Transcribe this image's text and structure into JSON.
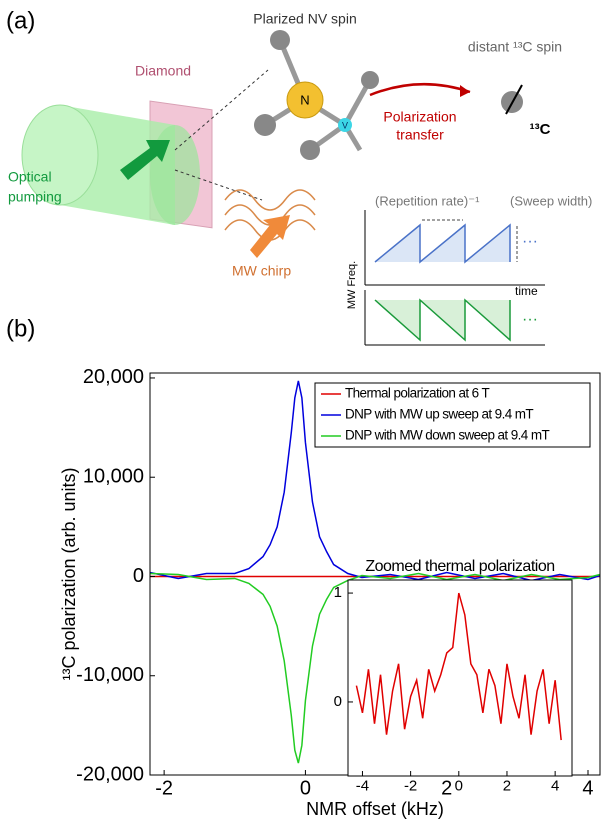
{
  "figure": {
    "panel_a_label": "(a)",
    "panel_b_label": "(b)"
  },
  "diagram": {
    "nv_label": "Plarized NV spin",
    "diamond_label": "Diamond",
    "optical_pumping": [
      "Optical",
      "pumping"
    ],
    "nitrogen": "N",
    "vacancy": "V",
    "transfer_label": [
      "Polarization",
      "transfer"
    ],
    "distant_label": "distant ¹³C spin",
    "carbon_label": "¹³C",
    "mw_chirp": "MW chirp",
    "repetition_rate": "(Repetition rate)⁻¹",
    "sweep_width": "(Sweep width)",
    "y_label": "MW Freq.",
    "x_label": "time",
    "ellipsis_up": "···",
    "ellipsis_down": "···"
  },
  "chart_data": [
    {
      "type": "line",
      "x_label": "NMR offset (kHz)",
      "y_label": "¹³C polarization (arb. units)",
      "x": [
        -2.2,
        -1.8,
        -1.4,
        -1.0,
        -0.8,
        -0.6,
        -0.5,
        -0.4,
        -0.3,
        -0.2,
        -0.15,
        -0.1,
        -0.05,
        0,
        0.1,
        0.2,
        0.3,
        0.4,
        0.6,
        0.8,
        1.2,
        1.6,
        2.0,
        2.4,
        2.8,
        3.2,
        3.6,
        4.0,
        4.17
      ],
      "series": [
        {
          "name": "Thermal polarization at 6 T",
          "color": "#e00000",
          "values": [
            0,
            0,
            0,
            0,
            0,
            0,
            0,
            0,
            0,
            0,
            0,
            0,
            0,
            0,
            0,
            0,
            0,
            0,
            0,
            0,
            0,
            0,
            0,
            0,
            0,
            0,
            0,
            0,
            0
          ]
        },
        {
          "name": "DNP with MW up sweep at 9.4 mT",
          "color": "#0000dd",
          "values": [
            400,
            -200,
            300,
            300,
            800,
            2000,
            3200,
            5000,
            8500,
            14500,
            18000,
            19700,
            18000,
            13500,
            7500,
            4000,
            2500,
            1200,
            300,
            -100,
            200,
            -300,
            400,
            -200,
            300,
            -400,
            200,
            -300,
            100
          ]
        },
        {
          "name": "DNP with MW down sweep at 9.4 mT",
          "color": "#22cc22",
          "values": [
            300,
            200,
            -300,
            -200,
            -700,
            -1800,
            -3000,
            -5000,
            -8500,
            -14000,
            -17500,
            -18800,
            -17000,
            -12500,
            -7000,
            -3800,
            -2300,
            -1100,
            -400,
            100,
            -200,
            300,
            -300,
            200,
            -400,
            200,
            -300,
            -100,
            200
          ]
        }
      ],
      "xlim": [
        -2.2,
        4.17
      ],
      "ylim": [
        -20000,
        20500
      ],
      "xticks": [
        -2,
        0,
        2,
        4
      ],
      "yticks": [
        {
          "value": -20000,
          "label": "-20,000"
        },
        {
          "value": -10000,
          "label": "-10,000"
        },
        0,
        {
          "value": 10000,
          "label": "10,000"
        },
        {
          "value": 20000,
          "label": "20,000"
        }
      ],
      "legend": "upper right"
    },
    {
      "type": "line",
      "title": "Zoomed thermal polarization",
      "x": [
        -4.25,
        -4,
        -3.75,
        -3.5,
        -3.25,
        -3,
        -2.75,
        -2.5,
        -2.25,
        -2,
        -1.75,
        -1.5,
        -1.25,
        -1,
        -0.75,
        -0.5,
        -0.25,
        0,
        0.25,
        0.5,
        0.75,
        1,
        1.25,
        1.5,
        1.75,
        2,
        2.25,
        2.5,
        2.75,
        3,
        3.25,
        3.5,
        3.75,
        4,
        4.25
      ],
      "series": [
        {
          "color": "#e00000",
          "values": [
            0.15,
            -0.1,
            0.3,
            -0.2,
            0.25,
            -0.3,
            0.1,
            0.35,
            -0.25,
            0.05,
            0.2,
            -0.15,
            0.3,
            0.1,
            0.25,
            0.45,
            0.5,
            1.0,
            0.8,
            0.35,
            0.25,
            -0.1,
            0.3,
            0.15,
            -0.2,
            0.35,
            0.05,
            -0.15,
            0.25,
            -0.3,
            0.1,
            0.3,
            -0.2,
            0.2,
            -0.35
          ]
        }
      ],
      "xlim": [
        -4.6,
        4.7
      ],
      "ylim": [
        -0.68,
        1.12
      ],
      "xticks": [
        -4,
        -2,
        0,
        2,
        4
      ],
      "yticks": [
        0,
        1
      ]
    }
  ]
}
